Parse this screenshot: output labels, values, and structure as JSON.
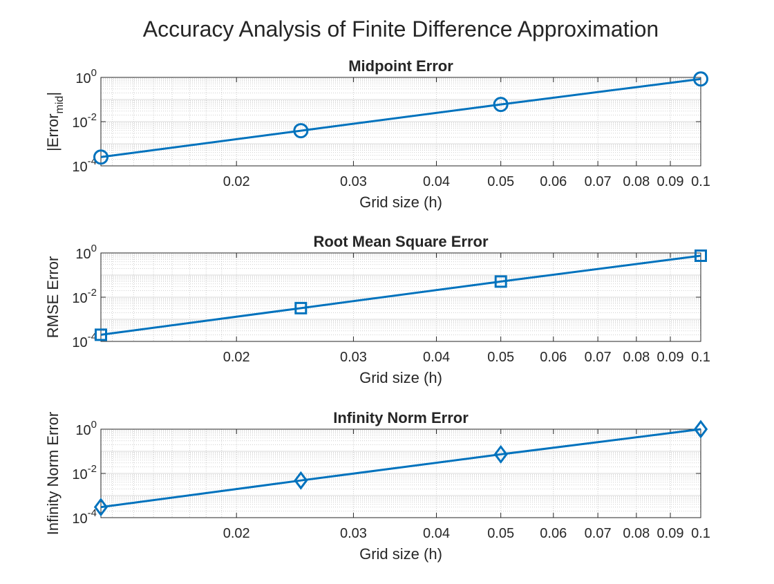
{
  "figure": {
    "title": "Accuracy Analysis of Finite Difference Approximation"
  },
  "colors": {
    "series": "#0072BD",
    "axis": "#262626",
    "grid": "#b0b0b0"
  },
  "chart_data": [
    {
      "type": "line",
      "title": "Midpoint Error",
      "xlabel": "Grid size (h)",
      "ylabel": {
        "base": "|Error",
        "sub": "mid",
        "tail": "|"
      },
      "xscale": "log",
      "yscale": "log",
      "xlim": [
        0.0125,
        0.1
      ],
      "ylim": [
        0.0001,
        1
      ],
      "grid": true,
      "minor_grid": true,
      "marker": "circle",
      "x_ticks": [
        {
          "value": 0.02,
          "label": "0.02"
        },
        {
          "value": 0.03,
          "label": "0.03"
        },
        {
          "value": 0.04,
          "label": "0.04"
        },
        {
          "value": 0.05,
          "label": "0.05"
        },
        {
          "value": 0.06,
          "label": "0.06"
        },
        {
          "value": 0.07,
          "label": "0.07"
        },
        {
          "value": 0.08,
          "label": "0.08"
        },
        {
          "value": 0.09,
          "label": "0.09"
        },
        {
          "value": 0.1,
          "label": "0.1"
        }
      ],
      "y_ticks": [
        {
          "value": 0.0001,
          "base": "10",
          "exp": "-4"
        },
        {
          "value": 0.01,
          "base": "10",
          "exp": "-2"
        },
        {
          "value": 1,
          "base": "10",
          "exp": "0"
        }
      ],
      "x": [
        0.0125,
        0.025,
        0.05,
        0.1
      ],
      "values": [
        0.00025,
        0.0039,
        0.06,
        0.85
      ]
    },
    {
      "type": "line",
      "title": "Root Mean Square Error",
      "xlabel": "Grid size (h)",
      "ylabel": {
        "base": "RMSE Error",
        "sub": "",
        "tail": ""
      },
      "xscale": "log",
      "yscale": "log",
      "xlim": [
        0.0125,
        0.1
      ],
      "ylim": [
        0.0001,
        1
      ],
      "grid": true,
      "minor_grid": true,
      "marker": "square",
      "x_ticks": [
        {
          "value": 0.02,
          "label": "0.02"
        },
        {
          "value": 0.03,
          "label": "0.03"
        },
        {
          "value": 0.04,
          "label": "0.04"
        },
        {
          "value": 0.05,
          "label": "0.05"
        },
        {
          "value": 0.06,
          "label": "0.06"
        },
        {
          "value": 0.07,
          "label": "0.07"
        },
        {
          "value": 0.08,
          "label": "0.08"
        },
        {
          "value": 0.09,
          "label": "0.09"
        },
        {
          "value": 0.1,
          "label": "0.1"
        }
      ],
      "y_ticks": [
        {
          "value": 0.0001,
          "base": "10",
          "exp": "-4"
        },
        {
          "value": 0.01,
          "base": "10",
          "exp": "-2"
        },
        {
          "value": 1,
          "base": "10",
          "exp": "0"
        }
      ],
      "x": [
        0.0125,
        0.025,
        0.05,
        0.1
      ],
      "values": [
        0.0002,
        0.0032,
        0.051,
        0.75
      ]
    },
    {
      "type": "line",
      "title": "Infinity Norm Error",
      "xlabel": "Grid size (h)",
      "ylabel": {
        "base": "Infinity Norm Error",
        "sub": "",
        "tail": ""
      },
      "xscale": "log",
      "yscale": "log",
      "xlim": [
        0.0125,
        0.1
      ],
      "ylim": [
        0.0001,
        1
      ],
      "grid": true,
      "minor_grid": true,
      "marker": "diamond",
      "x_ticks": [
        {
          "value": 0.02,
          "label": "0.02"
        },
        {
          "value": 0.03,
          "label": "0.03"
        },
        {
          "value": 0.04,
          "label": "0.04"
        },
        {
          "value": 0.05,
          "label": "0.05"
        },
        {
          "value": 0.06,
          "label": "0.06"
        },
        {
          "value": 0.07,
          "label": "0.07"
        },
        {
          "value": 0.08,
          "label": "0.08"
        },
        {
          "value": 0.09,
          "label": "0.09"
        },
        {
          "value": 0.1,
          "label": "0.1"
        }
      ],
      "y_ticks": [
        {
          "value": 0.0001,
          "base": "10",
          "exp": "-4"
        },
        {
          "value": 0.01,
          "base": "10",
          "exp": "-2"
        },
        {
          "value": 1,
          "base": "10",
          "exp": "0"
        }
      ],
      "x": [
        0.0125,
        0.025,
        0.05,
        0.1
      ],
      "values": [
        0.0003,
        0.0048,
        0.073,
        1.0
      ]
    }
  ]
}
